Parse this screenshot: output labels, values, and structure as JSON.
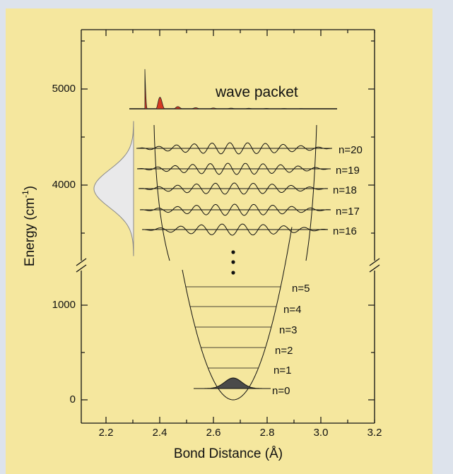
{
  "figure": {
    "x_axis_title": "Bond Distance (Å)",
    "y_axis_title_main": "Energy (cm",
    "y_axis_title_sup": "-1",
    "y_axis_title_end": ")",
    "x_ticks": [
      "2.2",
      "2.4",
      "2.6",
      "2.8",
      "3.0",
      "3.2"
    ],
    "y_ticks_upper": [
      "4000",
      "5000"
    ],
    "y_ticks_lower": [
      "0",
      "1000"
    ],
    "wave_packet_label": "wave packet",
    "upper_levels": [
      "n=20",
      "n=19",
      "n=18",
      "n=17",
      "n=16"
    ],
    "lower_levels": [
      "n=5",
      "n=4",
      "n=3",
      "n=2",
      "n=1",
      "n=0"
    ],
    "ellipsis_dots": 3
  },
  "colors": {
    "panel_background": "#f5e79e",
    "outer_background": "#dde3ec",
    "wave_packet_fill": "#d63a22",
    "ground_state_fill": "#4a4a4a",
    "gaussian_fill": "#e9e9ea"
  }
}
